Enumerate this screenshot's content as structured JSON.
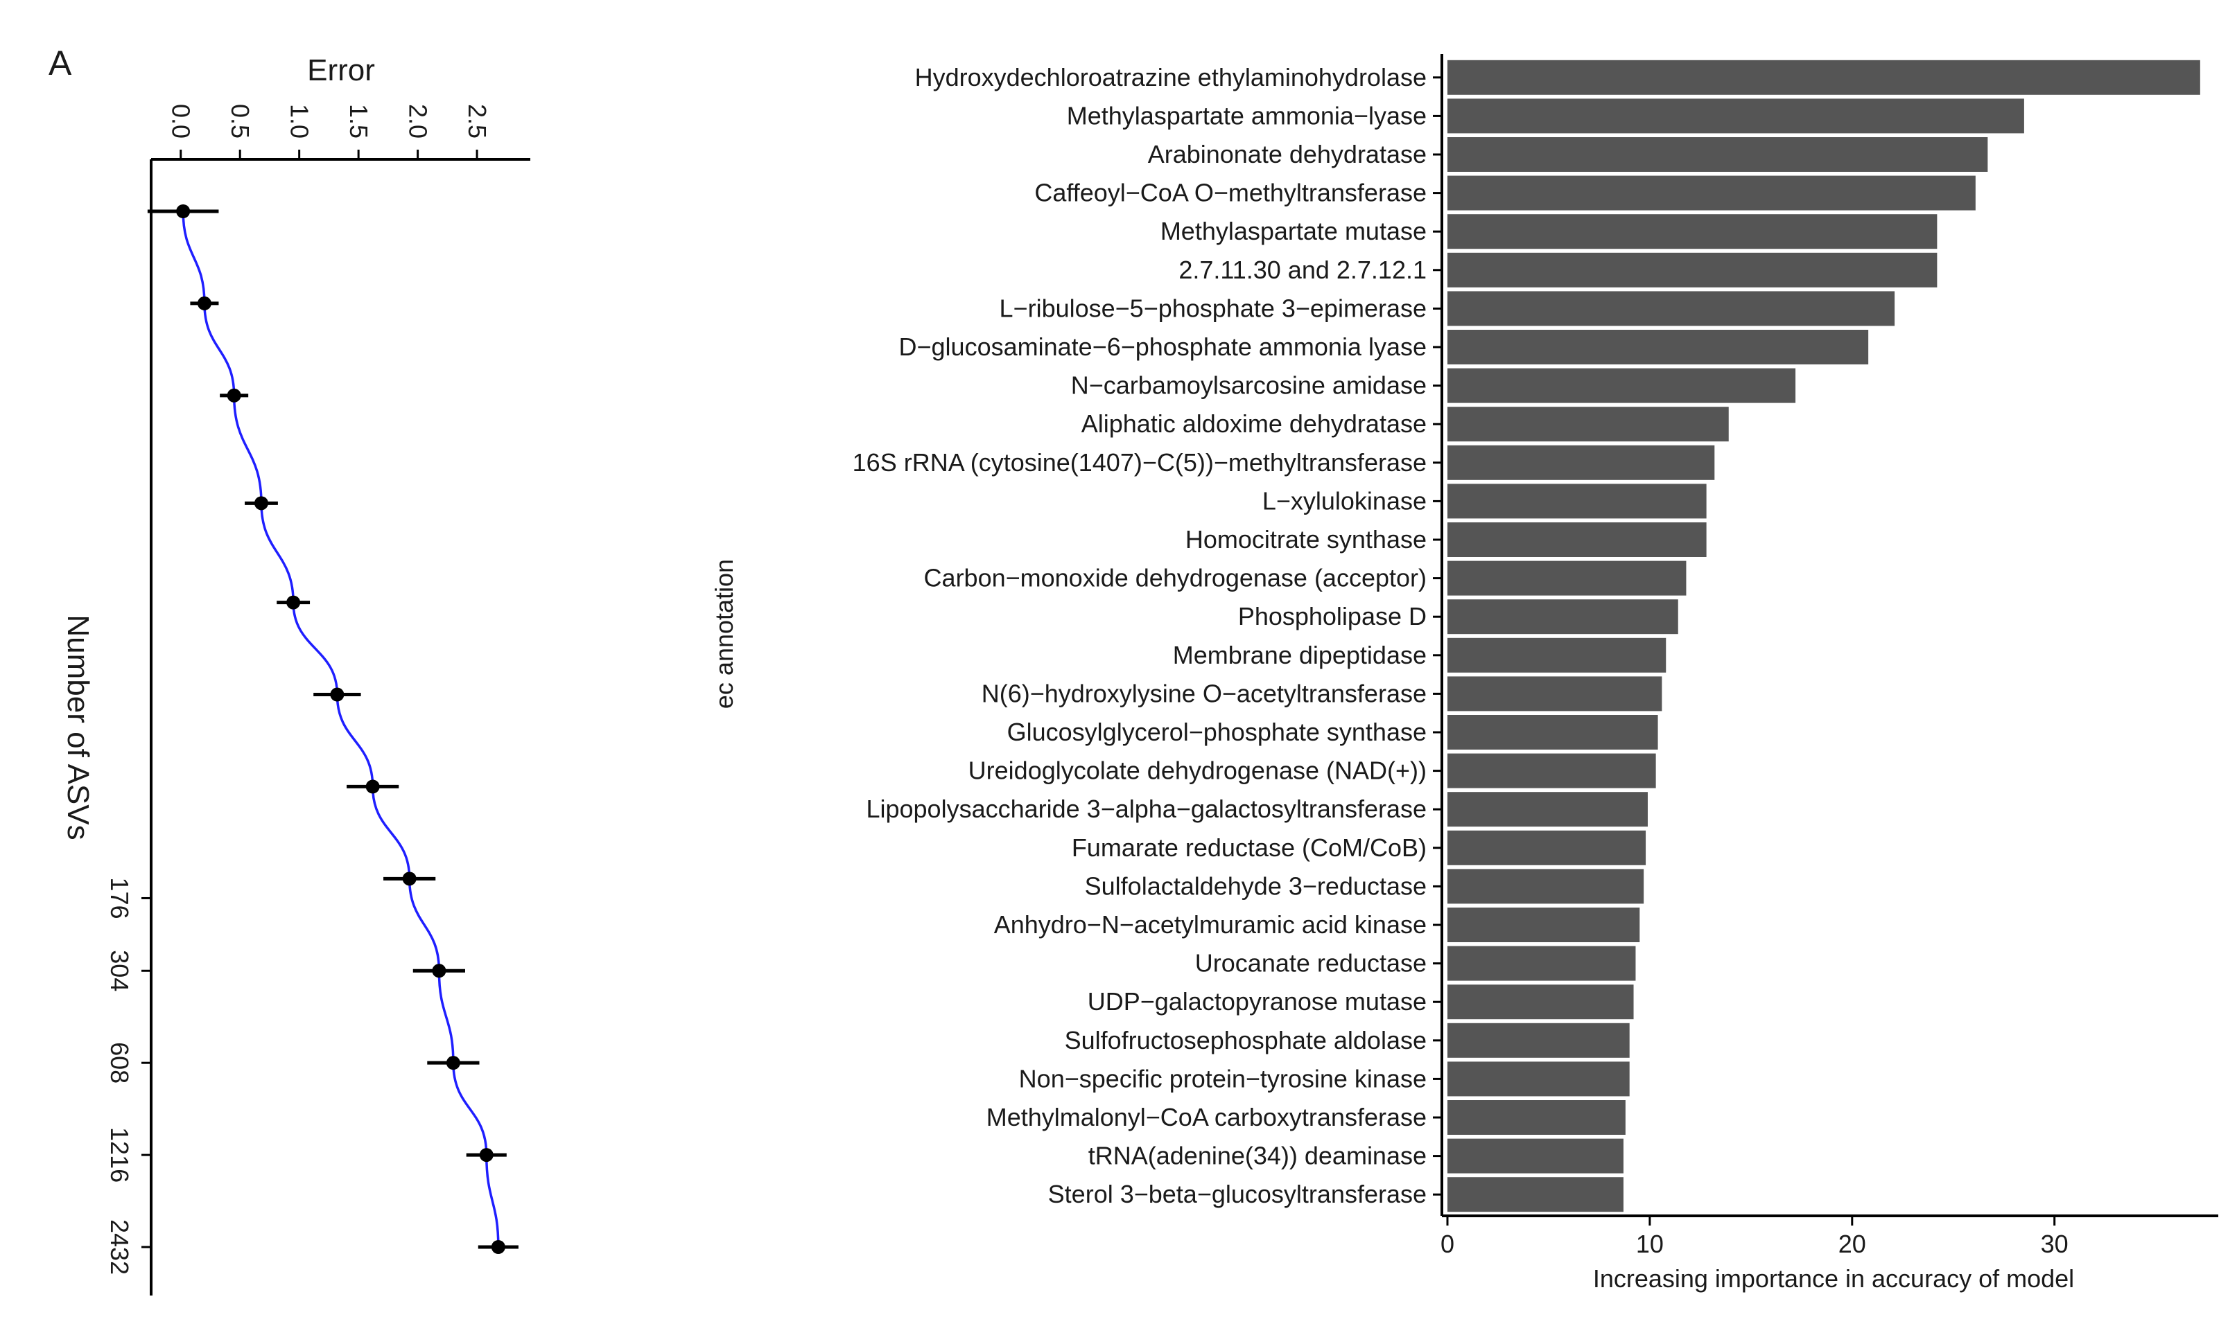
{
  "chart_data": [
    {
      "type": "line",
      "panel_label": "A",
      "title": "",
      "xlabel": "Error",
      "ylabel": "Number of ASVs",
      "xlim": [
        -0.25,
        2.95
      ],
      "x_ticks": [
        0.0,
        0.5,
        1.0,
        1.5,
        2.0,
        2.5
      ],
      "x_tick_labels": [
        "0.0",
        "0.5",
        "1.0",
        "1.5",
        "2.0",
        "2.5"
      ],
      "y_ticks": [
        176,
        304,
        608,
        1216,
        2432
      ],
      "y_tick_labels": [
        "176",
        "304",
        "608",
        "1216",
        "2432"
      ],
      "line_color": "#1f1fff",
      "points": [
        {
          "asvs": 1,
          "error": 0.02,
          "err": 0.3
        },
        {
          "asvs": 2,
          "error": 0.2,
          "err": 0.12
        },
        {
          "asvs": 4,
          "error": 0.45,
          "err": 0.12
        },
        {
          "asvs": 9,
          "error": 0.68,
          "err": 0.14
        },
        {
          "asvs": 19,
          "error": 0.95,
          "err": 0.14
        },
        {
          "asvs": 38,
          "error": 1.32,
          "err": 0.2
        },
        {
          "asvs": 76,
          "error": 1.62,
          "err": 0.22
        },
        {
          "asvs": 152,
          "error": 1.93,
          "err": 0.22
        },
        {
          "asvs": 304,
          "error": 2.18,
          "err": 0.22
        },
        {
          "asvs": 608,
          "error": 2.3,
          "err": 0.22
        },
        {
          "asvs": 1216,
          "error": 2.58,
          "err": 0.17
        },
        {
          "asvs": 2432,
          "error": 2.68,
          "err": 0.17
        }
      ]
    },
    {
      "type": "bar",
      "orientation": "horizontal",
      "title": "",
      "xlabel": "Increasing importance in accuracy of model",
      "ylabel": "ec annotation",
      "xlim": [
        0,
        37
      ],
      "x_ticks": [
        0,
        10,
        20,
        30
      ],
      "x_tick_labels": [
        "0",
        "10",
        "20",
        "30"
      ],
      "bar_color": "#555555",
      "categories": [
        "Hydroxydechloroatrazine ethylaminohydrolase",
        "Methylaspartate ammonia−lyase",
        "Arabinonate dehydratase",
        "Caffeoyl−CoA O−methyltransferase",
        "Methylaspartate mutase",
        "2.7.11.30 and 2.7.12.1",
        "L−ribulose−5−phosphate 3−epimerase",
        "D−glucosaminate−6−phosphate ammonia lyase",
        "N−carbamoylsarcosine amidase",
        "Aliphatic aldoxime dehydratase",
        "16S rRNA (cytosine(1407)−C(5))−methyltransferase",
        "L−xylulokinase",
        "Homocitrate synthase",
        "Carbon−monoxide dehydrogenase (acceptor)",
        "Phospholipase D",
        "Membrane dipeptidase",
        "N(6)−hydroxylysine O−acetyltransferase",
        "Glucosylglycerol−phosphate synthase",
        "Ureidoglycolate dehydrogenase (NAD(+))",
        "Lipopolysaccharide 3−alpha−galactosyltransferase",
        "Fumarate reductase (CoM/CoB)",
        "Sulfolactaldehyde 3−reductase",
        "Anhydro−N−acetylmuramic acid kinase",
        "Urocanate reductase",
        "UDP−galactopyranose mutase",
        "Sulfofructosephosphate aldolase",
        "Non−specific protein−tyrosine kinase",
        "Methylmalonyl−CoA carboxytransferase",
        "tRNA(adenine(34)) deaminase",
        "Sterol 3−beta−glucosyltransferase"
      ],
      "values": [
        37.2,
        28.5,
        26.7,
        26.1,
        24.2,
        24.2,
        22.1,
        20.8,
        17.2,
        13.9,
        13.2,
        12.8,
        12.8,
        11.8,
        11.4,
        10.8,
        10.6,
        10.4,
        10.3,
        9.9,
        9.8,
        9.7,
        9.5,
        9.3,
        9.2,
        9.0,
        9.0,
        8.8,
        8.7,
        8.7
      ]
    }
  ]
}
